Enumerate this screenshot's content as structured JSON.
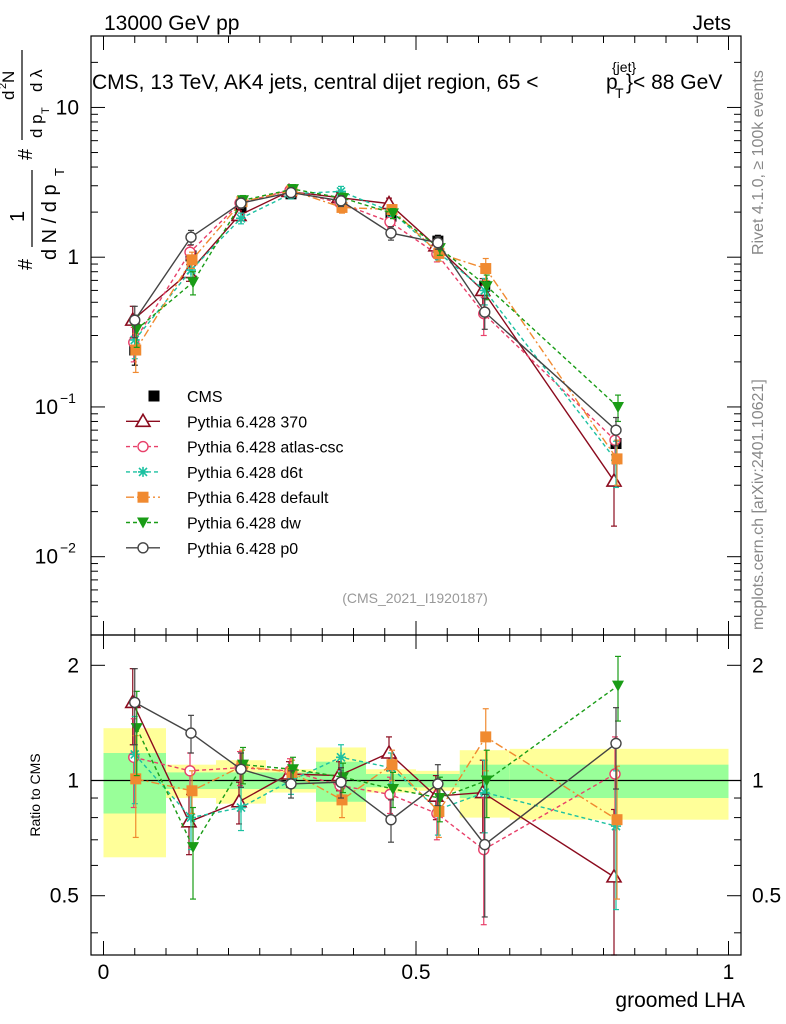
{
  "header": {
    "left": "13000 GeV pp",
    "right": "Jets"
  },
  "title": {
    "main": "CMS, 13 TeV, AK4 jets, central dijet region, 65 <",
    "p": "p",
    "sub": "T",
    "sup": "{jet}",
    "end": "}< 88 GeV"
  },
  "side": {
    "rivet": "Rivet 4.1.0, ≥ 100k events",
    "mcplots": "mcplots.cern.ch [arXiv:2401.10621]"
  },
  "watermark": "(CMS_2021_I1920187)",
  "ylabel": {
    "part1": "#",
    "part2": "1",
    "part3": "d N / d p",
    "part4": "#",
    "part5": "d p",
    "part6": "d",
    "part7": "N",
    "part8": "d λ",
    "sub_t": "T",
    "sup_2": "2"
  },
  "ratio_ylabel": "Ratio to CMS",
  "xlabel": "groomed LHA",
  "ticks": {
    "main_y": [
      {
        "v": 10,
        "t": "10"
      },
      {
        "v": 1,
        "t": "1"
      },
      {
        "v": 0.1,
        "t": "10"
      },
      {
        "v": 0.01,
        "t": "10"
      }
    ],
    "main_y_exp": [
      "",
      "",
      "−1",
      "−2"
    ],
    "ratio_y": [
      {
        "v": 2,
        "t": "2"
      },
      {
        "v": 1,
        "t": "1"
      },
      {
        "v": 0.5,
        "t": "0.5"
      }
    ],
    "x": [
      {
        "v": 0,
        "t": "0"
      },
      {
        "v": 0.5,
        "t": "0.5"
      },
      {
        "v": 1,
        "t": "1"
      }
    ]
  },
  "chart_data": {
    "type": "scatter",
    "title": "CMS, 13 TeV, AK4 jets, central dijet region, 65 < pT^{jet} < 88 GeV",
    "xlabel": "groomed LHA",
    "ylabel": "1/N dN/dpT d²N/dpT dλ",
    "xlim": [
      -0.02,
      1.02
    ],
    "ylim_main": [
      0.003,
      30
    ],
    "yscale_main": "log",
    "ylim_ratio": [
      0.35,
      2.4
    ],
    "yscale_ratio": "log",
    "legend_position": "bottom-left",
    "bins": [
      [
        0,
        0.1
      ],
      [
        0.1,
        0.18
      ],
      [
        0.18,
        0.26
      ],
      [
        0.26,
        0.34
      ],
      [
        0.34,
        0.42
      ],
      [
        0.42,
        0.5
      ],
      [
        0.5,
        0.57
      ],
      [
        0.57,
        0.65
      ],
      [
        0.65,
        1.0
      ]
    ],
    "x": [
      0.05,
      0.14,
      0.22,
      0.3,
      0.38,
      0.46,
      0.535,
      0.61,
      0.82
    ],
    "data_band_inner": [
      0.18,
      0.05,
      0.05,
      0.05,
      0.12,
      0.04,
      0.04,
      0.1,
      0.1
    ],
    "data_band_outer": [
      0.37,
      0.1,
      0.13,
      0.07,
      0.22,
      0.07,
      0.06,
      0.2,
      0.21
    ],
    "series": [
      {
        "name": "CMS",
        "color": "#000000",
        "marker": "square-filled",
        "dash": "none",
        "line": false,
        "values": [
          0.24,
          1.02,
          2.15,
          2.65,
          2.4,
          1.88,
          1.28,
          0.64,
          0.057
        ],
        "errors": [
          0.05,
          0.12,
          0.18,
          0.2,
          0.2,
          0.15,
          0.12,
          0.08,
          0.012
        ],
        "ratio": [
          1,
          1,
          1,
          1,
          1,
          1,
          1,
          1,
          1
        ],
        "ratio_errors": [
          0,
          0,
          0,
          0,
          0,
          0,
          0,
          0,
          0
        ]
      },
      {
        "name": "Pythia 6.428 370",
        "color": "#8b0b1e",
        "marker": "triangle-open",
        "dash": "none",
        "line": true,
        "values": [
          0.38,
          0.79,
          1.9,
          2.75,
          2.5,
          2.28,
          1.19,
          0.6,
          0.032
        ],
        "errors": [
          0.09,
          0.1,
          0.15,
          0.2,
          0.2,
          0.2,
          0.12,
          0.12,
          0.016
        ],
        "ratio": [
          1.6,
          0.78,
          0.88,
          1.04,
          1.03,
          1.18,
          0.91,
          0.93,
          0.56
        ],
        "ratio_errors": [
          0.36,
          0.14,
          0.11,
          0.08,
          0.09,
          0.12,
          0.12,
          0.2,
          0.28
        ]
      },
      {
        "name": "Pythia 6.428 atlas-csc",
        "color": "#e8406a",
        "marker": "circle-open",
        "dash": "4,3",
        "line": true,
        "values": [
          0.27,
          1.08,
          2.3,
          2.8,
          2.3,
          1.72,
          1.05,
          0.42,
          0.06
        ],
        "errors": [
          0.07,
          0.12,
          0.18,
          0.2,
          0.2,
          0.15,
          0.12,
          0.12,
          0.014
        ],
        "ratio": [
          1.15,
          1.06,
          1.08,
          1.06,
          0.97,
          0.92,
          0.82,
          0.66,
          1.04
        ],
        "ratio_errors": [
          0.3,
          0.12,
          0.11,
          0.08,
          0.09,
          0.1,
          0.12,
          0.24,
          0.26
        ]
      },
      {
        "name": "Pythia 6.428 d6t",
        "color": "#1cc1a1",
        "marker": "star",
        "dash": "4,3",
        "line": true,
        "values": [
          0.28,
          0.82,
          1.82,
          2.65,
          2.75,
          2.02,
          1.08,
          0.6,
          0.044
        ],
        "errors": [
          0.07,
          0.1,
          0.15,
          0.2,
          0.22,
          0.15,
          0.12,
          0.12,
          0.015
        ],
        "ratio": [
          1.17,
          0.8,
          0.85,
          1.0,
          1.15,
          1.08,
          0.84,
          0.93,
          0.76
        ],
        "ratio_errors": [
          0.3,
          0.14,
          0.11,
          0.08,
          0.09,
          0.1,
          0.12,
          0.2,
          0.3
        ]
      },
      {
        "name": "Pythia 6.428 default",
        "color": "#f08a30",
        "marker": "square-filled",
        "dash": "8,3,2,3",
        "line": true,
        "values": [
          0.24,
          0.96,
          2.35,
          2.78,
          2.15,
          2.08,
          1.06,
          0.84,
          0.045
        ],
        "errors": [
          0.07,
          0.12,
          0.18,
          0.2,
          0.18,
          0.15,
          0.12,
          0.14,
          0.015
        ],
        "ratio": [
          1.01,
          0.94,
          1.09,
          1.05,
          0.89,
          1.1,
          0.83,
          1.3,
          0.79
        ],
        "ratio_errors": [
          0.3,
          0.12,
          0.11,
          0.08,
          0.09,
          0.1,
          0.12,
          0.24,
          0.3
        ]
      },
      {
        "name": "Pythia 6.428 dw",
        "color": "#199c16",
        "marker": "triangle-down-filled",
        "dash": "4,3",
        "line": true,
        "values": [
          0.33,
          0.68,
          2.4,
          2.85,
          2.48,
          1.96,
          1.15,
          0.64,
          0.1
        ],
        "errors": [
          0.08,
          0.12,
          0.18,
          0.2,
          0.2,
          0.15,
          0.12,
          0.12,
          0.02
        ],
        "ratio": [
          1.37,
          0.67,
          1.1,
          1.07,
          1.02,
          0.95,
          0.9,
          1.0,
          1.77
        ],
        "ratio_errors": [
          0.34,
          0.18,
          0.12,
          0.08,
          0.09,
          0.1,
          0.12,
          0.2,
          0.34
        ]
      },
      {
        "name": "Pythia 6.428 p0",
        "color": "#444444",
        "marker": "circle-open",
        "dash": "none",
        "line": true,
        "values": [
          0.38,
          1.36,
          2.3,
          2.7,
          2.38,
          1.45,
          1.25,
          0.43,
          0.07
        ],
        "errors": [
          0.09,
          0.15,
          0.18,
          0.2,
          0.2,
          0.15,
          0.12,
          0.1,
          0.015
        ],
        "ratio": [
          1.6,
          1.33,
          1.07,
          0.98,
          0.99,
          0.79,
          0.98,
          0.68,
          1.25
        ],
        "ratio_errors": [
          0.36,
          0.15,
          0.11,
          0.08,
          0.09,
          0.1,
          0.12,
          0.24,
          0.3
        ]
      }
    ]
  }
}
